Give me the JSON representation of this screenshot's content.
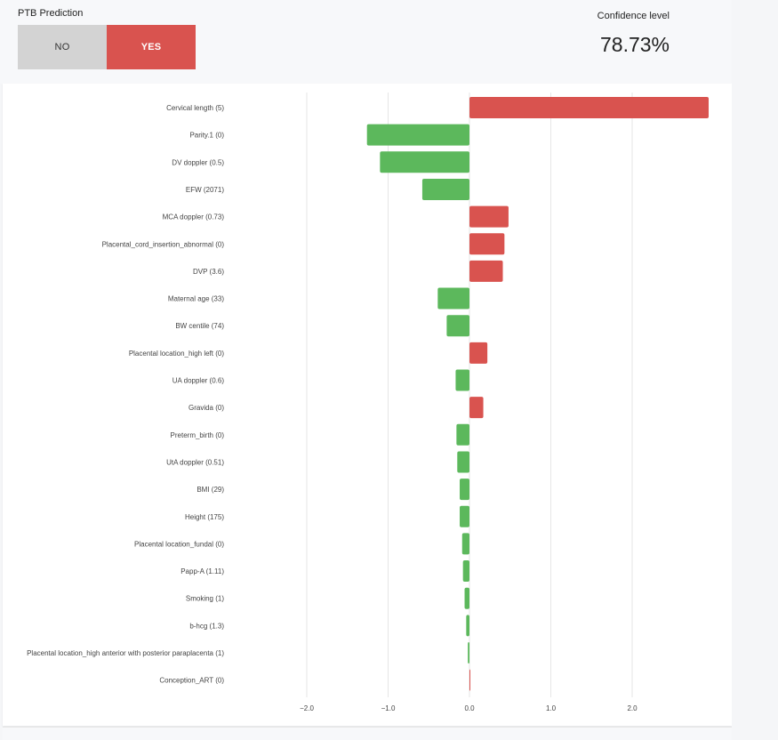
{
  "header": {
    "title": "PTB Prediction",
    "toggle": {
      "no_label": "NO",
      "yes_label": "YES",
      "selected": "YES"
    },
    "confidence_label": "Confidence level",
    "confidence_value": "78.73%"
  },
  "colors": {
    "positive": "#d9534f",
    "negative": "#5cb85c",
    "grid": "#e6e6e6",
    "no_bg": "#d3d3d3"
  },
  "chart_data": {
    "type": "bar",
    "orientation": "horizontal",
    "categories": [
      "Cervical length (5)",
      "Parity.1 (0)",
      "DV doppler (0.5)",
      "EFW (2071)",
      "MCA doppler (0.73)",
      "Placental_cord_insertion_abnormal (0)",
      "DVP (3.6)",
      "Maternal age (33)",
      "BW centile (74)",
      "Placental location_high left (0)",
      "UA doppler (0.6)",
      "Gravida (0)",
      "Preterm_birth (0)",
      "UtA doppler (0.51)",
      "BMI (29)",
      "Height (175)",
      "Placental location_fundal (0)",
      "Papp-A (1.11)",
      "Smoking (1)",
      "b-hcg (1.3)",
      "Placental location_high anterior with posterior paraplacenta (1)",
      "Conception_ART (0)"
    ],
    "values": [
      2.94,
      -1.26,
      -1.1,
      -0.58,
      0.48,
      0.43,
      0.41,
      -0.39,
      -0.28,
      0.22,
      -0.17,
      0.17,
      -0.16,
      -0.15,
      -0.12,
      -0.12,
      -0.09,
      -0.08,
      -0.06,
      -0.04,
      -0.02,
      0.01
    ],
    "xlim": [
      -2.5,
      3.0
    ],
    "xticks": [
      -2.0,
      -1.0,
      0.0,
      1.0,
      2.0
    ],
    "xtick_labels": [
      "−2.0",
      "−1.0",
      "0.0",
      "1.0",
      "2.0"
    ],
    "grid": true
  }
}
